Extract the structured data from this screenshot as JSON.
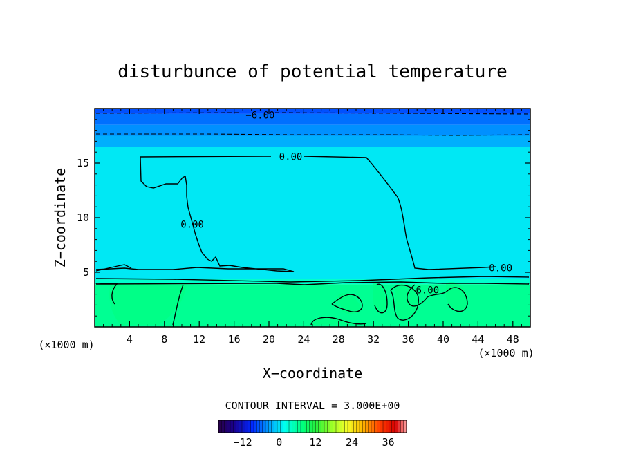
{
  "chart_data": {
    "type": "heatmap",
    "title": "disturbunce of potential temperature",
    "xlabel": "X−coordinate",
    "ylabel": "Z−coordinate",
    "x_unit": "(×1000 m)",
    "y_unit": "(×1000 m)",
    "xlim": [
      0,
      50
    ],
    "ylim": [
      0,
      20
    ],
    "x_ticks": [
      4,
      8,
      12,
      16,
      20,
      24,
      28,
      32,
      36,
      40,
      44,
      48
    ],
    "y_ticks": [
      5,
      10,
      15
    ],
    "contour_interval_label": "CONTOUR INTERVAL = 3.000E+00",
    "contour_labels": [
      {
        "text": "−6.00",
        "x": 19,
        "z": 19.4
      },
      {
        "text": "0.00",
        "x": 22.5,
        "z": 15.6
      },
      {
        "text": "0.00",
        "x": 11.2,
        "z": 9.4
      },
      {
        "text": "0.00",
        "x": 46.6,
        "z": 5.4
      },
      {
        "text": "6.00",
        "x": 38.2,
        "z": 3.4
      }
    ],
    "colorbar": {
      "range": [
        -20,
        42
      ],
      "ticks": [
        -12,
        0,
        12,
        24,
        36
      ],
      "tick_labels": [
        "−12",
        "0",
        "12",
        "24",
        "36"
      ]
    },
    "field_bands": [
      {
        "z_from": 19.5,
        "z_to": 20,
        "value": -7
      },
      {
        "z_from": 18.5,
        "z_to": 19.5,
        "value": -5.5
      },
      {
        "z_from": 17.5,
        "z_to": 18.5,
        "value": -4
      },
      {
        "z_from": 16.5,
        "z_to": 17.5,
        "value": -2.5
      },
      {
        "z_from": 4.4,
        "z_to": 16.5,
        "value": 0.5
      },
      {
        "z_from": 3.9,
        "z_to": 4.4,
        "value": 3.5
      },
      {
        "z_from": 0,
        "z_to": 3.9,
        "value": 6.5
      }
    ]
  }
}
